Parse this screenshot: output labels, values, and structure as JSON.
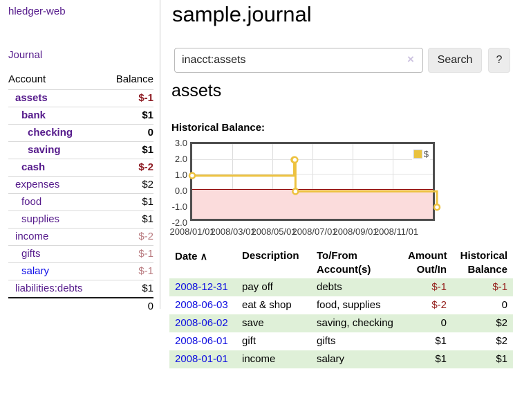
{
  "sidebar": {
    "brand": "hledger-web",
    "journal_link": "Journal",
    "accounts": {
      "headers": {
        "account": "Account",
        "balance": "Balance"
      },
      "rows": [
        {
          "label": "assets",
          "balance": "$-1"
        },
        {
          "label": "bank",
          "balance": "$1"
        },
        {
          "label": "checking",
          "balance": "0"
        },
        {
          "label": "saving",
          "balance": "$1"
        },
        {
          "label": "cash",
          "balance": "$-2"
        },
        {
          "label": "expenses",
          "balance": "$2"
        },
        {
          "label": "food",
          "balance": "$1"
        },
        {
          "label": "supplies",
          "balance": "$1"
        },
        {
          "label": "income",
          "balance": "$-2"
        },
        {
          "label": "gifts",
          "balance": "$-1"
        },
        {
          "label": "salary",
          "balance": "$-1"
        },
        {
          "label": "liabilities:debts",
          "balance": "$1"
        }
      ],
      "total": "0"
    }
  },
  "main": {
    "title": "sample.journal",
    "search": {
      "value": "inacct:assets",
      "clear_icon": "×",
      "button": "Search",
      "help_button": "?"
    },
    "account_heading": "assets",
    "chart_label": "Historical Balance:"
  },
  "chart_data": {
    "type": "line",
    "title": "Historical Balance:",
    "xrange": [
      "2008-01-01",
      "2008-12-31"
    ],
    "ylim": [
      -2,
      3
    ],
    "yticks": [
      "3.0",
      "2.0",
      "1.0",
      "0.0",
      "-1.0",
      "-2.0"
    ],
    "xticks": [
      "2008/01/01",
      "2008/03/01",
      "2008/05/01",
      "2008/07/01",
      "2008/09/01",
      "2008/11/01"
    ],
    "grid": true,
    "legend_position": "top-right",
    "series": [
      {
        "name": "$",
        "color": "#edc240",
        "step": true,
        "points": [
          [
            "2008-01-01",
            1
          ],
          [
            "2008-06-01",
            2
          ],
          [
            "2008-06-02",
            2
          ],
          [
            "2008-06-03",
            0
          ],
          [
            "2008-12-31",
            -1
          ]
        ]
      }
    ],
    "negative_fill": "#fbdcdc",
    "zero_line_color": "#8d0000"
  },
  "transactions": {
    "headers": {
      "date": "Date",
      "sort_icon": "∧",
      "description": "Description",
      "account_line1": "To/From",
      "account_line2": "Account(s)",
      "amount_line1": "Amount",
      "amount_line2": "Out/In",
      "balance_line1": "Historical",
      "balance_line2": "Balance"
    },
    "rows": [
      {
        "date": "2008-12-31",
        "description": "pay off",
        "accounts": "debts",
        "amount": "$-1",
        "balance": "$-1"
      },
      {
        "date": "2008-06-03",
        "description": "eat & shop",
        "accounts": "food, supplies",
        "amount": "$-2",
        "balance": "0"
      },
      {
        "date": "2008-06-02",
        "description": "save",
        "accounts": "saving, checking",
        "amount": "0",
        "balance": "$2"
      },
      {
        "date": "2008-06-01",
        "description": "gift",
        "accounts": "gifts",
        "amount": "$1",
        "balance": "$2"
      },
      {
        "date": "2008-01-01",
        "description": "income",
        "accounts": "salary",
        "amount": "$1",
        "balance": "$1"
      }
    ]
  }
}
